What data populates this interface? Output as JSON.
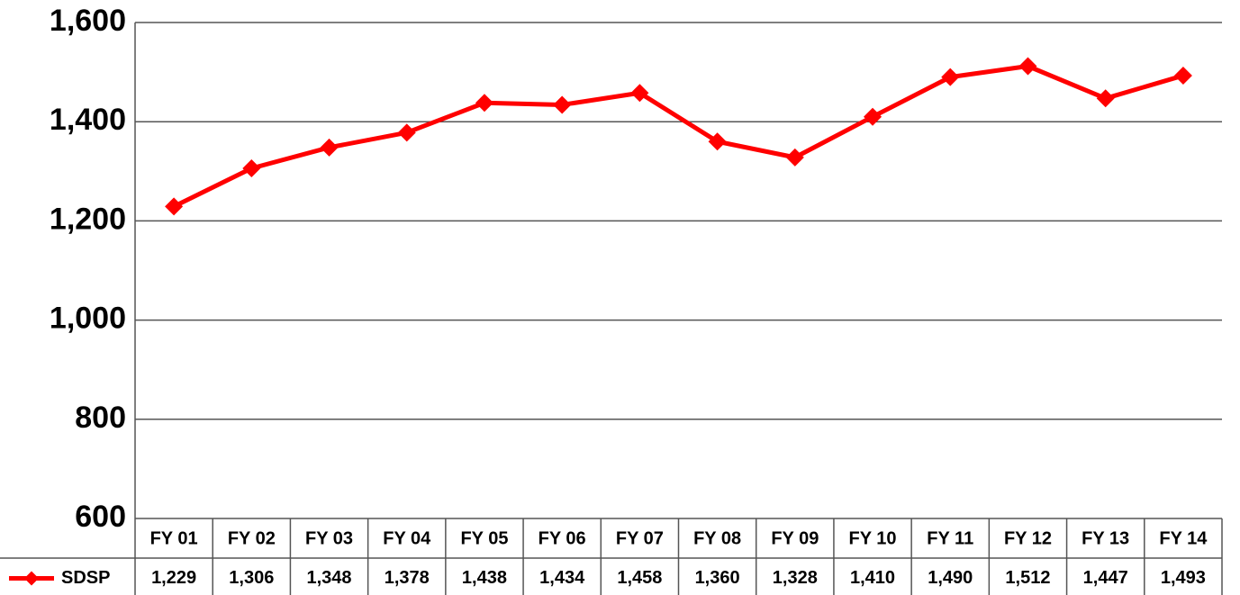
{
  "chart_data": {
    "type": "line",
    "categories": [
      "FY 01",
      "FY 02",
      "FY 03",
      "FY 04",
      "FY 05",
      "FY 06",
      "FY 07",
      "FY 08",
      "FY 09",
      "FY 10",
      "FY 11",
      "FY 12",
      "FY 13",
      "FY 14"
    ],
    "series": [
      {
        "name": "SDSP",
        "color": "#ff0000",
        "values": [
          1229,
          1306,
          1348,
          1378,
          1438,
          1434,
          1458,
          1360,
          1328,
          1410,
          1490,
          1512,
          1447,
          1493
        ],
        "value_labels": [
          "1,229",
          "1,306",
          "1,348",
          "1,378",
          "1,438",
          "1,434",
          "1,458",
          "1,360",
          "1,328",
          "1,410",
          "1,490",
          "1,512",
          "1,447",
          "1,493"
        ]
      }
    ],
    "ylim": [
      600,
      1600
    ],
    "yticks": [
      {
        "value": 600,
        "label": "600"
      },
      {
        "value": 800,
        "label": "800"
      },
      {
        "value": 1000,
        "label": "1,000"
      },
      {
        "value": 1200,
        "label": "1,200"
      },
      {
        "value": 1400,
        "label": "1,400"
      },
      {
        "value": 1600,
        "label": "1,600"
      }
    ],
    "grid": true
  }
}
